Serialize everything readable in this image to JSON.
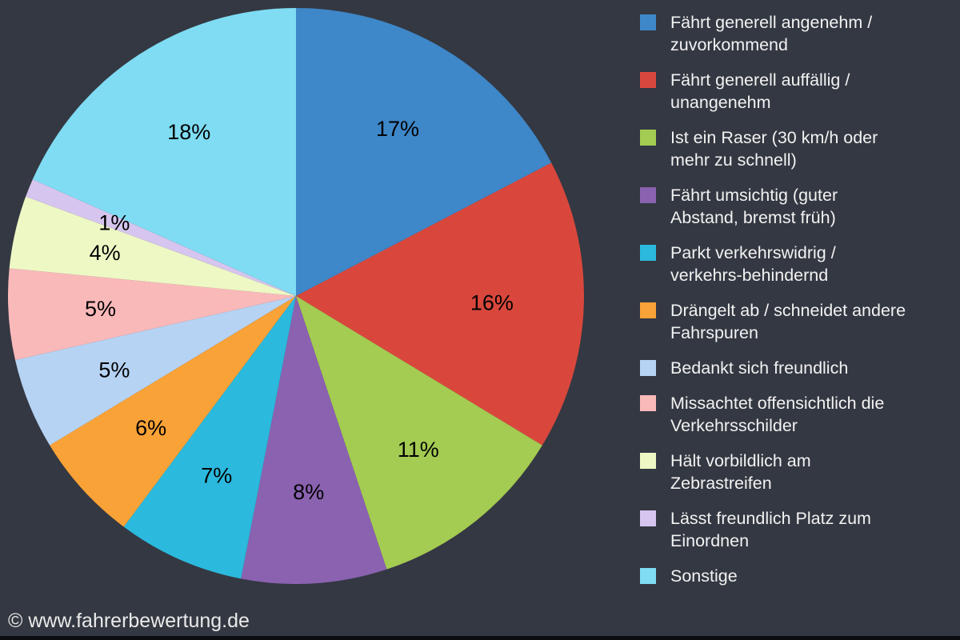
{
  "page": {
    "background_color": "#343842",
    "bottom_bar_color": "#0b0d11",
    "legend_text_color": "#f2f2f2"
  },
  "chart_data": {
    "type": "pie",
    "title": "",
    "direction": "clockwise",
    "start_angle": "12-o-clock",
    "legend_position": "right",
    "data_label_color": "#000000",
    "slices": [
      {
        "label": "Fährt generell angenehm /\nzuvorkommend",
        "value_pct": 17,
        "data_label": "17%",
        "color": "#3e87c9"
      },
      {
        "label": "Fährt generell auffällig /\nunangenehm",
        "value_pct": 16,
        "data_label": "16%",
        "color": "#d9473c"
      },
      {
        "label": "Ist ein Raser (30 km/h oder\nmehr zu schnell)",
        "value_pct": 11,
        "data_label": "11%",
        "color": "#a4cb52"
      },
      {
        "label": "Fährt umsichtig (guter\nAbstand, bremst früh)",
        "value_pct": 8,
        "data_label": "8%",
        "color": "#8a62b0"
      },
      {
        "label": "Parkt verkehrswidrig /\nverkehrs-behindernd",
        "value_pct": 7,
        "data_label": "7%",
        "color": "#2bb9dd"
      },
      {
        "label": "Drängelt ab / schneidet andere\nFahrspuren",
        "value_pct": 6,
        "data_label": "6%",
        "color": "#f9a237"
      },
      {
        "label": "Bedankt sich freundlich",
        "value_pct": 5,
        "data_label": "5%",
        "color": "#b6d3f4"
      },
      {
        "label": "Missachtet offensichtlich die\nVerkehrsschilder",
        "value_pct": 5,
        "data_label": "5%",
        "color": "#fab9b9"
      },
      {
        "label": "Hält vorbildlich am\nZebrastreifen",
        "value_pct": 4,
        "data_label": "4%",
        "color": "#eef8c5"
      },
      {
        "label": "Lässt freundlich Platz zum\nEinordnen",
        "value_pct": 1,
        "data_label": "1%",
        "color": "#d6c5ee"
      },
      {
        "label": "Sonstige",
        "value_pct": 18,
        "data_label": "18%",
        "color": "#7fdcf3"
      }
    ]
  },
  "footer": {
    "copyright": "© www.fahrerbewertung.de"
  }
}
